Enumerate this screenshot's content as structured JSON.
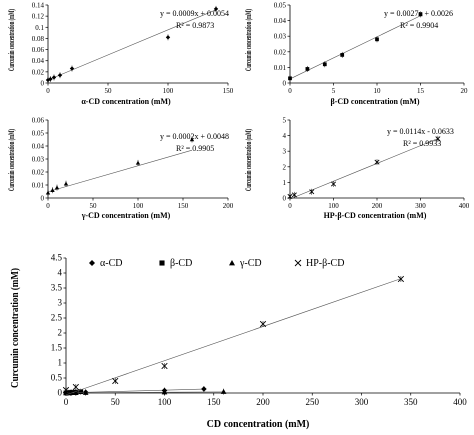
{
  "chart_data": [
    {
      "type": "scatter",
      "x": [
        0,
        2,
        5,
        10,
        20,
        100,
        140
      ],
      "y": [
        0.0054,
        0.007,
        0.01,
        0.014,
        0.026,
        0.082,
        0.133
      ],
      "xticks": [
        "0",
        "50",
        "100",
        "150"
      ],
      "yticks": [
        "0",
        "0.02",
        "0.04",
        "0.06",
        "0.08",
        "0.1",
        "0.12",
        "0.14"
      ],
      "xlim": [
        0,
        150
      ],
      "ylim": [
        0,
        0.14
      ],
      "xlabel": "α-CD concentration (mM)",
      "ylabel": "Curcumin concentration (mM)",
      "equation": "y = 0.0009x + 0.0054",
      "r2": "R² = 0.9873",
      "trend": [
        0.0009,
        0.0054
      ],
      "marker": "diamond"
    },
    {
      "type": "scatter",
      "x": [
        0,
        2,
        4,
        6,
        10,
        15
      ],
      "y": [
        0.003,
        0.009,
        0.012,
        0.018,
        0.028,
        0.044
      ],
      "xticks": [
        "0",
        "5",
        "10",
        "15",
        "20"
      ],
      "yticks": [
        "0",
        "0.01",
        "0.02",
        "0.03",
        "0.04",
        "0.05"
      ],
      "xlim": [
        0,
        20
      ],
      "ylim": [
        0,
        0.05
      ],
      "xlabel": "β-CD concentration (mM)",
      "ylabel": "Curcumin concentration (mM)",
      "equation": "y = 0.0027x + 0.0026",
      "r2": "R² = 0.9904",
      "trend": [
        0.0027,
        0.0026
      ],
      "marker": "square"
    },
    {
      "type": "scatter",
      "x": [
        0,
        5,
        10,
        20,
        100,
        160
      ],
      "y": [
        0.004,
        0.006,
        0.008,
        0.011,
        0.027,
        0.045
      ],
      "xticks": [
        "0",
        "50",
        "100",
        "150",
        "200"
      ],
      "yticks": [
        "0",
        "0.01",
        "0.02",
        "0.03",
        "0.04",
        "0.05",
        "0.06"
      ],
      "xlim": [
        0,
        200
      ],
      "ylim": [
        0,
        0.06
      ],
      "xlabel": "γ-CD concentration (mM)",
      "ylabel": "Curcumin concentration (mM)",
      "equation": "y = 0.0002x + 0.0048",
      "r2": "R² = 0.9905",
      "trend": [
        0.0002,
        0.0048
      ],
      "marker": "triangle"
    },
    {
      "type": "scatter",
      "x": [
        0,
        10,
        50,
        100,
        200,
        340
      ],
      "y": [
        0.1,
        0.2,
        0.4,
        0.9,
        2.3,
        3.8
      ],
      "xticks": [
        "0",
        "100",
        "200",
        "300",
        "400"
      ],
      "yticks": [
        "0",
        "1",
        "2",
        "3",
        "4",
        "5"
      ],
      "xlim": [
        0,
        400
      ],
      "ylim": [
        0,
        5
      ],
      "xlabel": "HP-β-CD concentration (mM)",
      "ylabel": "Curcumin concentration (mM)",
      "equation": "y = 0.0114x - 0.0633",
      "r2": "R² = 0.9933",
      "trend": [
        0.0114,
        -0.0633
      ],
      "marker": "cross"
    },
    {
      "type": "scatter",
      "xticks": [
        "0",
        "50",
        "100",
        "150",
        "200",
        "250",
        "300",
        "350",
        "400"
      ],
      "yticks": [
        "0",
        "0.5",
        "1",
        "1.5",
        "2",
        "2.5",
        "3",
        "3.5",
        "4",
        "4.5"
      ],
      "xlim": [
        0,
        400
      ],
      "ylim": [
        0,
        4.5
      ],
      "xlabel": "CD concentration (mM)",
      "ylabel": "Curcumin concentration (mM)",
      "legend_position": "top",
      "series": [
        {
          "name": "α-CD",
          "marker": "diamond",
          "x": [
            0,
            2,
            5,
            10,
            20,
            100,
            140
          ],
          "y": [
            0.0054,
            0.007,
            0.01,
            0.014,
            0.026,
            0.082,
            0.133
          ],
          "trend": [
            0.0009,
            0.0054
          ]
        },
        {
          "name": "β-CD",
          "marker": "square",
          "x": [
            0,
            2,
            4,
            6,
            10,
            15
          ],
          "y": [
            0.003,
            0.009,
            0.012,
            0.018,
            0.028,
            0.044
          ],
          "trend": [
            0.0027,
            0.0026
          ]
        },
        {
          "name": "γ-CD",
          "marker": "triangle",
          "x": [
            0,
            5,
            10,
            20,
            100,
            160
          ],
          "y": [
            0.004,
            0.006,
            0.008,
            0.011,
            0.027,
            0.045
          ],
          "trend": [
            0.0002,
            0.0048
          ]
        },
        {
          "name": "HP-β-CD",
          "marker": "cross",
          "x": [
            0,
            10,
            50,
            100,
            200,
            340
          ],
          "y": [
            0.1,
            0.2,
            0.4,
            0.9,
            2.3,
            3.8
          ],
          "trend": [
            0.0114,
            -0.0633
          ]
        }
      ]
    }
  ]
}
